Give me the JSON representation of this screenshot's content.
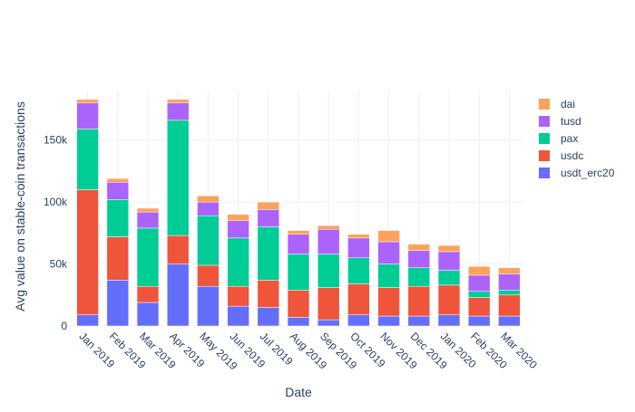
{
  "chart_data": {
    "type": "bar",
    "stacked": true,
    "title": "",
    "xlabel": "Date",
    "ylabel": "Avg value on stable-coin transactions",
    "ylim": [
      0,
      190000
    ],
    "yticks": [
      {
        "value": 0,
        "label": "0"
      },
      {
        "value": 50000,
        "label": "50k"
      },
      {
        "value": 100000,
        "label": "100k"
      },
      {
        "value": 150000,
        "label": "150k"
      }
    ],
    "grid": true,
    "legend_position": "top-right",
    "categories": [
      "Jan 2019",
      "Feb 2019",
      "Mar 2019",
      "Apr 2019",
      "May 2019",
      "Jun 2019",
      "Jul 2019",
      "Aug 2019",
      "Sep 2019",
      "Oct 2019",
      "Nov 2019",
      "Dec 2019",
      "Jan 2020",
      "Feb 2020",
      "Mar 2020"
    ],
    "series": [
      {
        "name": "usdt_erc20",
        "color": "#636efa",
        "values": [
          9000,
          37000,
          19000,
          50000,
          32000,
          16000,
          15000,
          7000,
          5000,
          9000,
          8000,
          8000,
          9000,
          8000,
          8000
        ]
      },
      {
        "name": "usdc",
        "color": "#ef553b",
        "values": [
          101000,
          35000,
          13000,
          23000,
          17000,
          16000,
          22000,
          22000,
          26000,
          25000,
          23000,
          24000,
          24000,
          15000,
          17000
        ]
      },
      {
        "name": "pax",
        "color": "#00cc96",
        "values": [
          49000,
          30000,
          47000,
          93000,
          40000,
          39000,
          43000,
          29000,
          27000,
          21000,
          19000,
          15000,
          12000,
          5000,
          4000
        ]
      },
      {
        "name": "tusd",
        "color": "#ab63fa",
        "values": [
          21000,
          14000,
          13000,
          14000,
          11000,
          14000,
          14000,
          16000,
          20000,
          16000,
          18000,
          14000,
          15000,
          13000,
          13000
        ]
      },
      {
        "name": "dai",
        "color": "#ffa15a",
        "values": [
          3000,
          3000,
          3000,
          3000,
          5000,
          5000,
          6000,
          3000,
          3000,
          3000,
          9000,
          5000,
          5000,
          7000,
          5000
        ]
      }
    ],
    "legend_order": [
      "dai",
      "tusd",
      "pax",
      "usdc",
      "usdt_erc20"
    ]
  }
}
